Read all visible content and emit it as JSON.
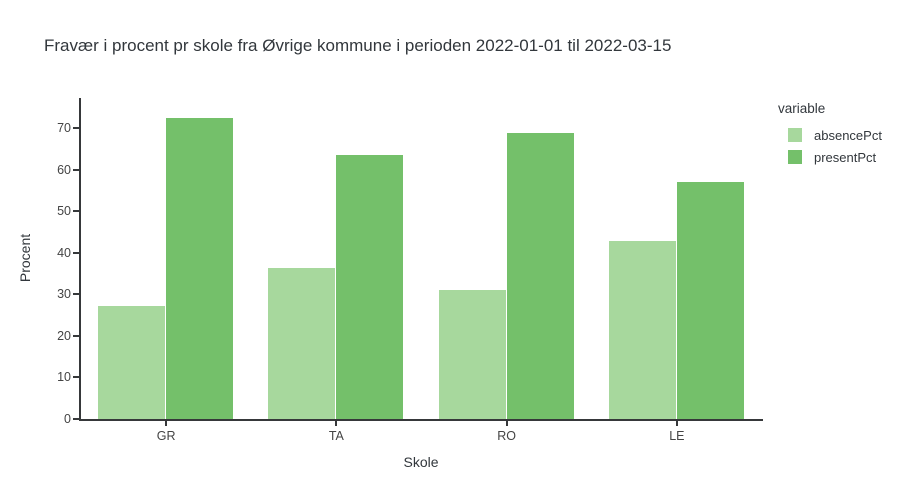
{
  "chart_data": {
    "type": "bar",
    "barmode": "group",
    "title": "Fravær i procent pr skole fra Øvrige kommune i perioden 2022-01-01 til 2022-03-15",
    "xlabel": "Skole",
    "ylabel": "Procent",
    "categories": [
      "GR",
      "TA",
      "RO",
      "LE"
    ],
    "series": [
      {
        "name": "absencePct",
        "color": "#a7d89d",
        "values": [
          27.3,
          36.3,
          31.0,
          42.7
        ]
      },
      {
        "name": "presentPct",
        "color": "#74c06a",
        "values": [
          72.5,
          63.5,
          68.7,
          57.1
        ]
      }
    ],
    "yticks": [
      0,
      10,
      20,
      30,
      40,
      50,
      60,
      70
    ],
    "ylim": [
      0,
      77.2
    ],
    "legend_title": "variable",
    "legend_position": "right",
    "grid": false,
    "background": "#ffffff"
  },
  "colors": {
    "axis_line": "#36383a",
    "tick_label": "#444444",
    "text": "#32373c"
  }
}
